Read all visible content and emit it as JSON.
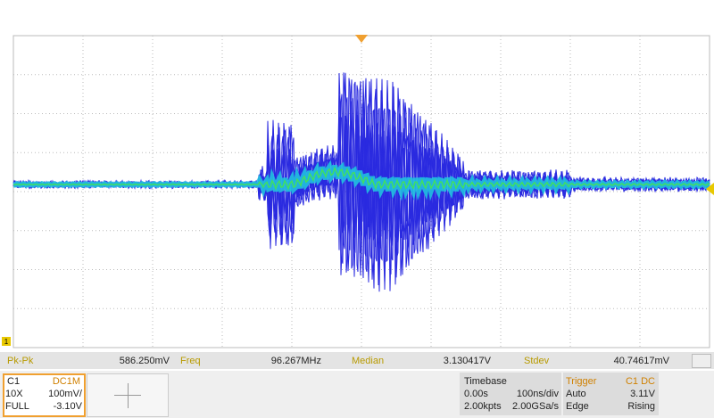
{
  "channel_marker": "1",
  "measurements": [
    {
      "label": "Pk-Pk",
      "value": "586.250mV"
    },
    {
      "label": "Freq",
      "value": "96.267MHz"
    },
    {
      "label": "Median",
      "value": "3.130417V"
    },
    {
      "label": "Stdev",
      "value": "40.74617mV"
    }
  ],
  "channel": {
    "name": "C1",
    "coupling": "DC1M",
    "probe": "10X",
    "scale": "100mV/",
    "bandwidth": "FULL",
    "offset": "-3.10V"
  },
  "timebase": {
    "title": "Timebase",
    "delay": "0.00s",
    "scale": "100ns/div",
    "points": "2.00kpts",
    "rate": "2.00GSa/s"
  },
  "trigger": {
    "title": "Trigger",
    "source": "C1 DC",
    "mode": "Auto",
    "level": "3.11V",
    "type": "Edge",
    "slope": "Rising"
  }
}
